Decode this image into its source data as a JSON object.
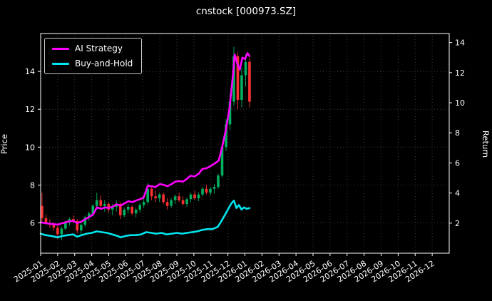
{
  "figure": {
    "title": "cnstock [000973.SZ]",
    "background": "#000000",
    "foreground": "#ffffff"
  },
  "chart_data": {
    "type": "candlestick+line",
    "title": "cnstock [000973.SZ]",
    "ylabel_left": "Price",
    "ylabel_right": "Return",
    "legend_position": "upper left",
    "grid": "dotted",
    "x_range_months": 24,
    "x_tick_labels": [
      "2025-01",
      "2025-02",
      "2025-03",
      "2025-04",
      "2025-05",
      "2025-06",
      "2025-07",
      "2025-08",
      "2025-09",
      "2025-10",
      "2025-11",
      "2025-12",
      "2026-01",
      "2026-02",
      "2026-03",
      "2026-04",
      "2026-05",
      "2026-06",
      "2026-07",
      "2026-08",
      "2026-09",
      "2026-10",
      "2026-11",
      "2026-12"
    ],
    "price_axis": {
      "lim": [
        4.4,
        16.0
      ],
      "ticks": [
        6,
        8,
        10,
        12,
        14
      ]
    },
    "return_axis": {
      "lim": [
        0,
        14.6
      ],
      "ticks": [
        2,
        4,
        6,
        8,
        10,
        12,
        14
      ]
    },
    "colors": {
      "up": "#00b060",
      "down": "#fe3032",
      "ai": "#ff00ff",
      "bh": "#00e5ee",
      "grid": "#3c3c3c",
      "spine": "#ffffff"
    },
    "candles_ohlc": [
      [
        0.08,
        6.9,
        7.6,
        6.0,
        6.25
      ],
      [
        0.31,
        6.25,
        6.45,
        5.9,
        6.0
      ],
      [
        0.54,
        6.0,
        6.2,
        5.75,
        5.9
      ],
      [
        0.77,
        5.9,
        6.05,
        5.6,
        5.75
      ],
      [
        1.0,
        5.75,
        5.85,
        5.15,
        5.4
      ],
      [
        1.23,
        5.4,
        5.8,
        5.1,
        5.7
      ],
      [
        1.46,
        5.7,
        6.1,
        5.6,
        6.0
      ],
      [
        1.69,
        6.0,
        6.3,
        5.85,
        6.2
      ],
      [
        1.92,
        6.2,
        6.4,
        6.0,
        6.1
      ],
      [
        2.15,
        6.1,
        6.2,
        5.45,
        5.6
      ],
      [
        2.38,
        5.6,
        6.0,
        5.3,
        5.9
      ],
      [
        2.61,
        5.9,
        6.4,
        5.8,
        6.3
      ],
      [
        2.84,
        6.3,
        6.6,
        6.1,
        6.5
      ],
      [
        3.07,
        6.5,
        7.0,
        6.35,
        6.9
      ],
      [
        3.3,
        6.9,
        7.6,
        6.7,
        7.2
      ],
      [
        3.53,
        7.2,
        7.45,
        6.8,
        6.9
      ],
      [
        3.76,
        6.9,
        7.2,
        6.6,
        7.0
      ],
      [
        3.99,
        7.0,
        7.1,
        6.55,
        6.7
      ],
      [
        4.22,
        6.7,
        7.0,
        6.4,
        6.85
      ],
      [
        4.45,
        6.85,
        7.2,
        6.6,
        7.0
      ],
      [
        4.68,
        7.0,
        7.1,
        6.2,
        6.4
      ],
      [
        4.91,
        6.4,
        6.8,
        6.3,
        6.7
      ],
      [
        5.14,
        6.7,
        7.0,
        6.5,
        6.85
      ],
      [
        5.37,
        6.85,
        6.95,
        6.4,
        6.5
      ],
      [
        5.6,
        6.5,
        6.8,
        6.3,
        6.7
      ],
      [
        5.83,
        6.7,
        7.05,
        6.55,
        6.95
      ],
      [
        6.06,
        6.95,
        7.3,
        6.8,
        7.1
      ],
      [
        6.29,
        7.1,
        8.1,
        7.0,
        7.8
      ],
      [
        6.52,
        7.8,
        7.95,
        7.2,
        7.4
      ],
      [
        6.75,
        7.4,
        7.7,
        7.1,
        7.3
      ],
      [
        6.98,
        7.3,
        7.6,
        7.1,
        7.5
      ],
      [
        7.21,
        7.5,
        7.6,
        7.0,
        7.1
      ],
      [
        7.44,
        7.1,
        7.3,
        6.7,
        6.9
      ],
      [
        7.67,
        6.9,
        7.3,
        6.8,
        7.2
      ],
      [
        7.9,
        7.2,
        7.5,
        7.0,
        7.4
      ],
      [
        8.13,
        7.4,
        7.6,
        7.1,
        7.2
      ],
      [
        8.36,
        7.2,
        7.4,
        6.9,
        7.0
      ],
      [
        8.59,
        7.0,
        7.35,
        6.85,
        7.25
      ],
      [
        8.82,
        7.25,
        7.6,
        7.1,
        7.5
      ],
      [
        9.05,
        7.5,
        7.7,
        7.2,
        7.3
      ],
      [
        9.28,
        7.3,
        7.6,
        7.15,
        7.5
      ],
      [
        9.51,
        7.5,
        7.9,
        7.4,
        7.8
      ],
      [
        9.74,
        7.8,
        8.0,
        7.5,
        7.6
      ],
      [
        9.97,
        7.6,
        7.9,
        7.45,
        7.8
      ],
      [
        10.2,
        7.8,
        8.05,
        7.55,
        7.9
      ],
      [
        10.43,
        7.9,
        8.6,
        7.8,
        8.5
      ],
      [
        10.66,
        8.5,
        10.2,
        8.4,
        10.0
      ],
      [
        10.89,
        10.0,
        11.5,
        9.8,
        11.2
      ],
      [
        11.12,
        11.2,
        12.8,
        10.9,
        12.4
      ],
      [
        11.35,
        12.4,
        15.3,
        12.2,
        14.8
      ],
      [
        11.58,
        14.8,
        15.0,
        12.0,
        12.5
      ],
      [
        11.81,
        12.5,
        14.2,
        12.1,
        13.8
      ],
      [
        12.04,
        13.8,
        14.9,
        13.2,
        14.5
      ],
      [
        12.27,
        14.5,
        14.7,
        12.1,
        12.4
      ]
    ],
    "series": [
      {
        "name": "AI Strategy",
        "color_key": "ai",
        "axis": "return",
        "points": [
          [
            0,
            2.05
          ],
          [
            0.3,
            2.0
          ],
          [
            0.6,
            1.95
          ],
          [
            1.0,
            1.9
          ],
          [
            1.3,
            2.0
          ],
          [
            1.6,
            2.1
          ],
          [
            1.9,
            2.15
          ],
          [
            2.15,
            2.0
          ],
          [
            2.4,
            2.1
          ],
          [
            2.6,
            2.25
          ],
          [
            2.85,
            2.4
          ],
          [
            3.1,
            2.6
          ],
          [
            3.3,
            3.05
          ],
          [
            3.55,
            2.95
          ],
          [
            3.8,
            3.05
          ],
          [
            4.0,
            3.0
          ],
          [
            4.25,
            3.1
          ],
          [
            4.45,
            3.25
          ],
          [
            4.7,
            3.15
          ],
          [
            4.9,
            3.3
          ],
          [
            5.15,
            3.45
          ],
          [
            5.4,
            3.4
          ],
          [
            5.6,
            3.5
          ],
          [
            5.85,
            3.6
          ],
          [
            6.05,
            3.7
          ],
          [
            6.3,
            4.5
          ],
          [
            6.5,
            4.45
          ],
          [
            6.75,
            4.4
          ],
          [
            7.0,
            4.6
          ],
          [
            7.2,
            4.55
          ],
          [
            7.45,
            4.45
          ],
          [
            7.7,
            4.6
          ],
          [
            7.9,
            4.75
          ],
          [
            8.15,
            4.8
          ],
          [
            8.35,
            4.75
          ],
          [
            8.6,
            4.95
          ],
          [
            8.8,
            5.15
          ],
          [
            9.05,
            5.1
          ],
          [
            9.3,
            5.3
          ],
          [
            9.5,
            5.6
          ],
          [
            9.75,
            5.65
          ],
          [
            10.0,
            5.8
          ],
          [
            10.2,
            5.95
          ],
          [
            10.45,
            6.15
          ],
          [
            10.65,
            7.0
          ],
          [
            10.9,
            8.3
          ],
          [
            11.1,
            9.7
          ],
          [
            11.3,
            11.9
          ],
          [
            11.4,
            13.2
          ],
          [
            11.55,
            12.6
          ],
          [
            11.7,
            12.2
          ],
          [
            11.85,
            13.0
          ],
          [
            12.0,
            12.9
          ],
          [
            12.15,
            13.3
          ],
          [
            12.27,
            13.1
          ]
        ]
      },
      {
        "name": "Buy-and-Hold",
        "color_key": "bh",
        "axis": "return",
        "points": [
          [
            0,
            1.3
          ],
          [
            0.3,
            1.2
          ],
          [
            0.6,
            1.15
          ],
          [
            1.0,
            1.05
          ],
          [
            1.3,
            1.15
          ],
          [
            1.6,
            1.2
          ],
          [
            1.9,
            1.25
          ],
          [
            2.15,
            1.1
          ],
          [
            2.4,
            1.2
          ],
          [
            2.7,
            1.3
          ],
          [
            3.0,
            1.35
          ],
          [
            3.3,
            1.45
          ],
          [
            3.6,
            1.4
          ],
          [
            3.9,
            1.35
          ],
          [
            4.2,
            1.25
          ],
          [
            4.5,
            1.15
          ],
          [
            4.7,
            1.05
          ],
          [
            5.0,
            1.15
          ],
          [
            5.3,
            1.2
          ],
          [
            5.6,
            1.2
          ],
          [
            5.9,
            1.25
          ],
          [
            6.2,
            1.4
          ],
          [
            6.5,
            1.35
          ],
          [
            6.8,
            1.3
          ],
          [
            7.1,
            1.35
          ],
          [
            7.4,
            1.25
          ],
          [
            7.7,
            1.3
          ],
          [
            8.0,
            1.35
          ],
          [
            8.3,
            1.3
          ],
          [
            8.6,
            1.35
          ],
          [
            8.9,
            1.4
          ],
          [
            9.2,
            1.45
          ],
          [
            9.5,
            1.55
          ],
          [
            9.8,
            1.6
          ],
          [
            10.1,
            1.6
          ],
          [
            10.4,
            1.75
          ],
          [
            10.6,
            2.1
          ],
          [
            10.8,
            2.5
          ],
          [
            11.0,
            2.9
          ],
          [
            11.2,
            3.3
          ],
          [
            11.35,
            3.5
          ],
          [
            11.5,
            3.0
          ],
          [
            11.65,
            3.2
          ],
          [
            11.8,
            2.9
          ],
          [
            11.95,
            3.05
          ],
          [
            12.1,
            2.95
          ],
          [
            12.27,
            3.0
          ]
        ]
      }
    ]
  }
}
